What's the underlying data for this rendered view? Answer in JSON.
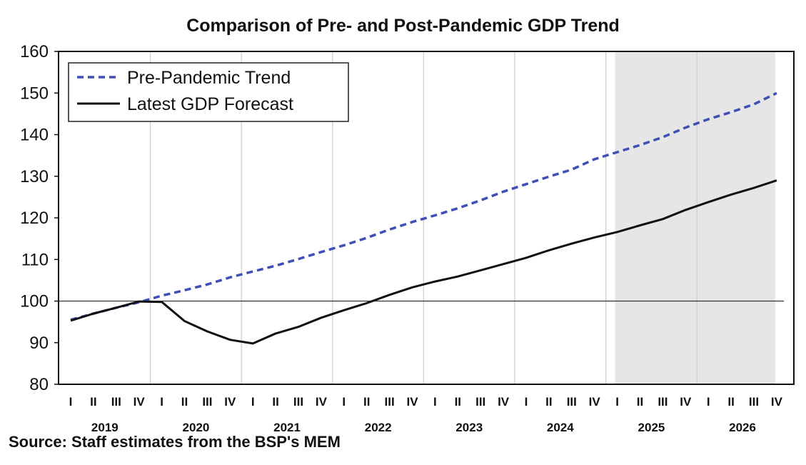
{
  "chart_data": {
    "type": "line",
    "title": "Comparison of Pre- and Post-Pandemic GDP Trend",
    "xlabel": "",
    "ylabel": "",
    "ylim": [
      80,
      160
    ],
    "yticks": [
      "80",
      "90",
      "100",
      "110",
      "120",
      "130",
      "140",
      "150",
      "160"
    ],
    "quarter_labels": [
      "I",
      "II",
      "III",
      "IV",
      "I",
      "II",
      "III",
      "IV",
      "I",
      "II",
      "III",
      "IV",
      "I",
      "II",
      "III",
      "IV",
      "I",
      "II",
      "III",
      "IV",
      "I",
      "II",
      "III",
      "IV",
      "I",
      "II",
      "III",
      "IV",
      "I",
      "II",
      "III",
      "IV"
    ],
    "years": [
      "2019",
      "2020",
      "2021",
      "2022",
      "2023",
      "2024",
      "2025",
      "2026"
    ],
    "shaded_forecast_start": "2025 I",
    "reference_line": 100,
    "grid": "vertical lines at year boundaries",
    "legend_position": "top-left",
    "series": [
      {
        "name": "Pre-Pandemic Trend",
        "style": "dashed",
        "color": "#3f4fb5",
        "values": [
          95.5,
          97.0,
          98.4,
          99.7,
          101.3,
          102.6,
          104.0,
          105.7,
          107.1,
          108.5,
          110.1,
          111.8,
          113.4,
          115.2,
          117.2,
          119.0,
          120.6,
          122.3,
          124.2,
          126.3,
          128.1,
          129.9,
          131.6,
          134.1,
          135.8,
          137.5,
          139.4,
          141.7,
          143.7,
          145.4,
          147.3,
          150.0
        ]
      },
      {
        "name": "Latest GDP Forecast",
        "style": "solid",
        "color": "#111111",
        "values": [
          95.3,
          97.0,
          98.4,
          99.9,
          99.8,
          95.2,
          92.7,
          90.7,
          89.8,
          92.2,
          93.8,
          96.0,
          97.8,
          99.5,
          101.5,
          103.3,
          104.7,
          105.9,
          107.4,
          108.9,
          110.4,
          112.2,
          113.8,
          115.3,
          116.6,
          118.2,
          119.7,
          121.9,
          123.8,
          125.6,
          127.2,
          129.0
        ]
      }
    ]
  },
  "source": "Source: Staff estimates from the BSP's MEM"
}
